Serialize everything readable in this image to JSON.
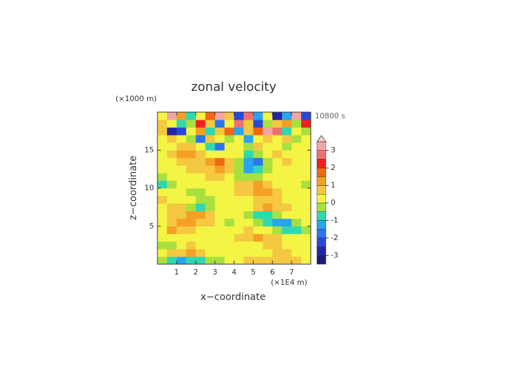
{
  "chart_data": {
    "type": "contourf",
    "title": "zonal velocity",
    "y_unit": "(×1000 m)",
    "time_label": "10800 s",
    "xlabel": "x−coordinate",
    "ylabel": "z−coordinate",
    "x_unit": "(×1E4 m)",
    "xlim": [
      0,
      8
    ],
    "ylim": [
      0,
      20
    ],
    "xticks": [
      1,
      2,
      3,
      4,
      5,
      6,
      7
    ],
    "yticks": [
      5,
      10,
      15
    ],
    "x": [
      0.25,
      0.75,
      1.25,
      1.75,
      2.25,
      2.75,
      3.25,
      3.75,
      4.25,
      4.75,
      5.25,
      5.75,
      6.25,
      6.75,
      7.25,
      7.75
    ],
    "y": [
      0.5,
      1.5,
      2.5,
      3.5,
      4.5,
      5.5,
      6.5,
      7.5,
      8.5,
      9.5,
      10.5,
      11.5,
      12.5,
      13.5,
      14.5,
      15.5,
      16.5,
      17.5,
      18.5,
      19.5
    ],
    "z": [
      [
        -0.4,
        -0.8,
        -1.2,
        -0.9,
        -0.6,
        -0.3,
        -0.2,
        0.1,
        0.4,
        0.6,
        0.8,
        0.9,
        0.8,
        0.6,
        0.5,
        0.3
      ],
      [
        0.3,
        0.5,
        0.8,
        1.0,
        0.7,
        0.4,
        0.3,
        0.2,
        0.3,
        0.2,
        0.3,
        0.4,
        0.5,
        0.6,
        0.4,
        0.3
      ],
      [
        -0.3,
        -0.2,
        0.3,
        0.6,
        0.4,
        0.2,
        0.3,
        0.2,
        0.2,
        0.3,
        0.4,
        0.7,
        0.6,
        0.4,
        0.3,
        0.2
      ],
      [
        0.2,
        0.4,
        0.3,
        0.2,
        0.1,
        0.3,
        0.2,
        0.3,
        0.6,
        0.8,
        1.0,
        0.8,
        0.6,
        0.3,
        0.2,
        0.1
      ],
      [
        0.3,
        1.1,
        0.9,
        0.5,
        0.4,
        0.2,
        0.1,
        0.2,
        0.4,
        0.5,
        0.3,
        0.2,
        -0.3,
        -0.6,
        -0.9,
        -0.5
      ],
      [
        0.4,
        0.7,
        1.2,
        1.0,
        0.8,
        0.5,
        0.3,
        -0.2,
        0.3,
        0.2,
        -0.4,
        -0.7,
        -1.2,
        -1.1,
        -0.4,
        0.2
      ],
      [
        0.2,
        0.5,
        0.9,
        1.1,
        1.0,
        0.6,
        0.3,
        0.2,
        0.2,
        -0.3,
        -0.6,
        -0.8,
        -0.4,
        0.2,
        0.3,
        0.1
      ],
      [
        0.3,
        0.6,
        0.7,
        -0.3,
        -0.6,
        -0.4,
        0.2,
        0.3,
        0.3,
        0.4,
        0.7,
        1.1,
        0.9,
        0.5,
        0.3,
        0.2
      ],
      [
        0.7,
        0.4,
        0.3,
        0.2,
        -0.4,
        -0.3,
        0.2,
        0.4,
        0.2,
        0.3,
        0.6,
        0.8,
        0.7,
        0.4,
        0.2,
        0.3
      ],
      [
        0.2,
        0.3,
        0.2,
        -0.2,
        -0.1,
        0.2,
        0.3,
        0.1,
        0.5,
        0.7,
        1.0,
        1.2,
        0.8,
        0.3,
        0.2,
        0.1
      ],
      [
        -0.6,
        -0.2,
        0.3,
        0.4,
        0.2,
        0.3,
        0.4,
        0.2,
        0.6,
        0.9,
        1.1,
        0.7,
        0.4,
        0.3,
        0.2,
        -0.3
      ],
      [
        -0.3,
        0.1,
        0.3,
        0.2,
        0.4,
        0.5,
        0.6,
        0.3,
        -0.2,
        -0.5,
        -0.3,
        0.1,
        0.3,
        0.2,
        0.1,
        0.3
      ],
      [
        0.1,
        0.2,
        0.4,
        0.5,
        0.6,
        0.9,
        1.2,
        0.8,
        -0.3,
        -1.1,
        -0.8,
        -0.2,
        0.2,
        0.4,
        0.2,
        0.1
      ],
      [
        0.2,
        0.3,
        0.6,
        0.7,
        0.9,
        1.3,
        1.7,
        0.6,
        -0.2,
        -1.4,
        -1.6,
        -0.4,
        0.3,
        0.5,
        0.3,
        0.2
      ],
      [
        0.4,
        0.6,
        1.1,
        1.2,
        0.6,
        0.3,
        0.2,
        0.4,
        0.3,
        -0.6,
        -0.4,
        0.3,
        0.5,
        0.2,
        0.3,
        0.1
      ],
      [
        0.1,
        0.3,
        0.5,
        0.7,
        0.2,
        -0.7,
        -1.6,
        0.3,
        0.1,
        -0.3,
        0.6,
        0.2,
        0.4,
        -0.4,
        0.2,
        0.3
      ],
      [
        0.3,
        0.8,
        0.2,
        -0.5,
        -1.8,
        0.6,
        0.3,
        -0.4,
        0.2,
        -1.2,
        0.4,
        0.7,
        0.2,
        0.5,
        -0.3,
        0.4
      ],
      [
        0.6,
        -2.6,
        -2.2,
        0.4,
        1.2,
        -0.8,
        0.5,
        1.6,
        -1.4,
        0.6,
        1.8,
        3.1,
        2.6,
        -0.9,
        0.4,
        -0.2
      ],
      [
        0.8,
        0.4,
        -0.6,
        -0.3,
        2.2,
        0.8,
        -1.6,
        0.2,
        2.8,
        0.6,
        -2.2,
        -0.4,
        0.8,
        1.4,
        -0.5,
        2.2
      ],
      [
        0.2,
        3.2,
        1.2,
        -0.8,
        0.3,
        1.8,
        3.2,
        0.5,
        -2.2,
        2.8,
        -1.2,
        0.4,
        -2.8,
        -1.5,
        3.2,
        -2.5
      ]
    ],
    "levels": [
      -3.5,
      -3,
      -2.5,
      -2,
      -1.5,
      -1,
      -0.5,
      0,
      0.5,
      1,
      1.5,
      2,
      2.5,
      3,
      3.5
    ],
    "colors": [
      "#1c1c78",
      "#2424a8",
      "#2848d8",
      "#2c74f0",
      "#28a4f0",
      "#30d8b0",
      "#a8e040",
      "#f4f444",
      "#f4c840",
      "#f4a024",
      "#f06814",
      "#f02020",
      "#f07070",
      "#f4a4a4"
    ],
    "over_color": "#f8d4d4",
    "colorbar_ticks": [
      -3,
      -2,
      -1,
      0,
      1,
      2,
      3
    ]
  }
}
